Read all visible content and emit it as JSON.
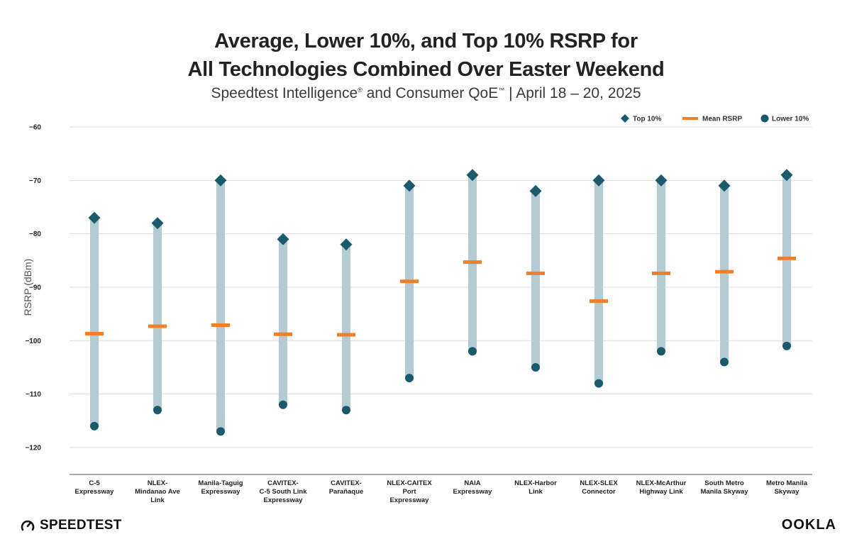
{
  "header": {
    "title_line1": "Average, Lower 10%, and Top 10% RSRP for",
    "title_line2": "All Technologies Combined Over Easter Weekend",
    "subtitle_a": "Speedtest Intelligence",
    "subtitle_b": " and Consumer QoE",
    "subtitle_c": " | April 18 – 20, 2025"
  },
  "brand": {
    "left": "SPEEDTEST",
    "right": "OOKLA"
  },
  "colors": {
    "range": "#b3cbd1",
    "mean": "#f07f2a",
    "marker": "#1a5a6b",
    "grid": "#dddddd",
    "axis": "#555555"
  },
  "chart_data": {
    "type": "dot-range",
    "ylabel": "RSRP (dBm)",
    "ylim": [
      -125,
      -60
    ],
    "yticks": [
      -60,
      -70,
      -80,
      -90,
      -100,
      -110,
      -120
    ],
    "grid": true,
    "legend_position": "top-right",
    "legend": [
      "Top 10%",
      "Mean RSRP",
      "Lower 10%"
    ],
    "categories": [
      [
        "C-5",
        "Expressway"
      ],
      [
        "NLEX-",
        "Mindanao Ave",
        "Link"
      ],
      [
        "Manila-Taguig",
        "Expressway"
      ],
      [
        "CAVITEX-",
        "C-5 South Link",
        "Expressway"
      ],
      [
        "CAVITEX-",
        "Parañaque"
      ],
      [
        "NLEX-CAITEX",
        "Port",
        "Expressway"
      ],
      [
        "NAIA",
        "Expressway"
      ],
      [
        "NLEX-Harbor",
        "Link"
      ],
      [
        "NLEX-SLEX",
        "Connector"
      ],
      [
        "NLEX-McArthur",
        "Highway Link"
      ],
      [
        "South Metro",
        "Manila Skyway"
      ],
      [
        "Metro Manila",
        "Skyway"
      ]
    ],
    "series": [
      {
        "name": "Top 10%",
        "values": [
          -77,
          -78,
          -70,
          -81,
          -82,
          -71,
          -69,
          -72,
          -70,
          -70,
          -71,
          -69
        ]
      },
      {
        "name": "Mean RSRP",
        "values": [
          -98.7,
          -97.3,
          -97.1,
          -98.8,
          -98.9,
          -88.9,
          -85.3,
          -87.4,
          -92.6,
          -87.4,
          -87.1,
          -84.6
        ]
      },
      {
        "name": "Lower 10%",
        "values": [
          -116,
          -113,
          -117,
          -112,
          -113,
          -107,
          -102,
          -105,
          -108,
          -102,
          -104,
          -101
        ]
      }
    ]
  }
}
